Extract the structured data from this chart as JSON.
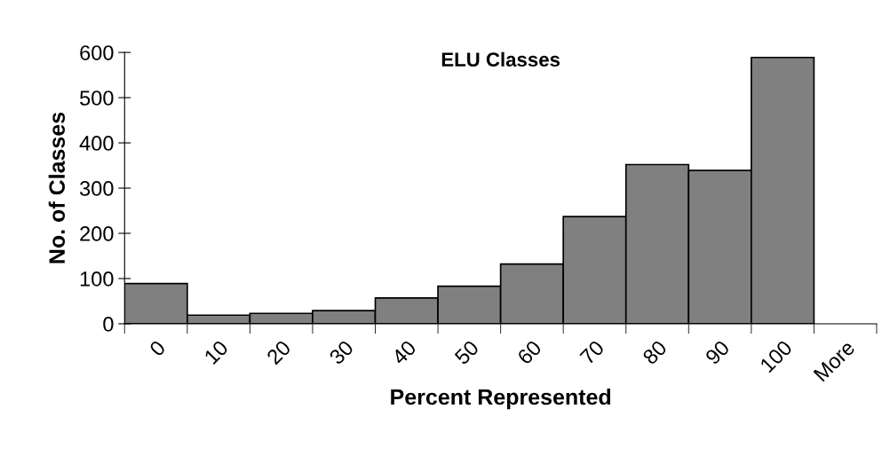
{
  "chart_data": {
    "type": "bar",
    "title": "ELU Classes",
    "xlabel": "Percent Represented",
    "ylabel": "No. of Classes",
    "categories": [
      "0",
      "10",
      "20",
      "30",
      "40",
      "50",
      "60",
      "70",
      "80",
      "90",
      "100",
      "More"
    ],
    "values": [
      89,
      19,
      23,
      29,
      57,
      83,
      132,
      237,
      352,
      339,
      589,
      null
    ],
    "color": "#808080",
    "ylim": [
      0,
      600
    ],
    "yticks": [
      0,
      100,
      200,
      300,
      400,
      500,
      600
    ],
    "grid": false,
    "legend": false
  }
}
